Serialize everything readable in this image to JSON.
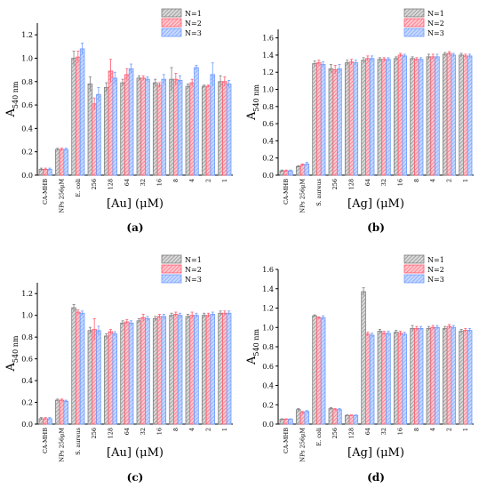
{
  "colors": {
    "N1": "#7f7f7f",
    "N2": "#ff5a6e",
    "N3": "#6e9bff"
  },
  "chart_data": [
    {
      "type": "bar",
      "panel_label": "(a)",
      "xlabel": "[Au] (μM)",
      "ylabel_main": "A",
      "ylabel_sub": "540 nm",
      "ylim": [
        0,
        1.3
      ],
      "yticks": [
        "0.0",
        "0.2",
        "0.4",
        "0.6",
        "0.8",
        "1.0",
        "1.2"
      ],
      "legend_position": "top-right",
      "categories": [
        "CA-MHB",
        "NPs 256μM",
        "E. coli",
        "256",
        "128",
        "64",
        "32",
        "16",
        "8",
        "4",
        "2",
        "1"
      ],
      "series": [
        {
          "name": "N=1",
          "values": [
            0.05,
            0.22,
            1.0,
            0.78,
            0.75,
            0.79,
            0.83,
            0.79,
            0.82,
            0.76,
            0.76,
            0.8
          ],
          "errors": [
            0.01,
            0.01,
            0.06,
            0.06,
            0.04,
            0.03,
            0.02,
            0.03,
            0.1,
            0.02,
            0.01,
            0.05
          ]
        },
        {
          "name": "N=2",
          "values": [
            0.05,
            0.22,
            1.01,
            0.61,
            0.89,
            0.86,
            0.83,
            0.77,
            0.82,
            0.79,
            0.76,
            0.8
          ],
          "errors": [
            0.01,
            0.01,
            0.05,
            0.05,
            0.1,
            0.05,
            0.02,
            0.02,
            0.05,
            0.03,
            0.01,
            0.04
          ]
        },
        {
          "name": "N=3",
          "values": [
            0.05,
            0.22,
            1.08,
            0.69,
            0.83,
            0.91,
            0.82,
            0.82,
            0.81,
            0.92,
            0.86,
            0.78
          ],
          "errors": [
            0.01,
            0.01,
            0.05,
            0.06,
            0.05,
            0.04,
            0.02,
            0.04,
            0.04,
            0.02,
            0.1,
            0.03
          ]
        }
      ]
    },
    {
      "type": "bar",
      "panel_label": "(b)",
      "xlabel": "[Ag] (μM)",
      "ylabel_main": "A",
      "ylabel_sub": "540 nm",
      "ylim": [
        0,
        1.7
      ],
      "yticks": [
        "0.0",
        "0.2",
        "0.4",
        "0.6",
        "0.8",
        "1.0",
        "1.2",
        "1.4",
        "1.6"
      ],
      "legend_position": "top-right",
      "categories": [
        "CA-MHB",
        "NPs 256μM",
        "S. aureus",
        "256",
        "128",
        "64",
        "32",
        "16",
        "8",
        "4",
        "2",
        "1"
      ],
      "series": [
        {
          "name": "N=1",
          "values": [
            0.05,
            0.1,
            1.3,
            1.24,
            1.31,
            1.34,
            1.35,
            1.36,
            1.36,
            1.38,
            1.41,
            1.4
          ],
          "errors": [
            0.01,
            0.01,
            0.03,
            0.05,
            0.03,
            0.03,
            0.02,
            0.02,
            0.02,
            0.03,
            0.02,
            0.02
          ]
        },
        {
          "name": "N=2",
          "values": [
            0.05,
            0.12,
            1.31,
            1.23,
            1.32,
            1.36,
            1.35,
            1.4,
            1.35,
            1.38,
            1.42,
            1.39
          ],
          "errors": [
            0.01,
            0.01,
            0.03,
            0.05,
            0.03,
            0.03,
            0.02,
            0.02,
            0.02,
            0.03,
            0.02,
            0.02
          ]
        },
        {
          "name": "N=3",
          "values": [
            0.05,
            0.13,
            1.29,
            1.24,
            1.31,
            1.36,
            1.35,
            1.39,
            1.35,
            1.38,
            1.4,
            1.39
          ],
          "errors": [
            0.01,
            0.02,
            0.03,
            0.05,
            0.03,
            0.03,
            0.02,
            0.02,
            0.02,
            0.03,
            0.02,
            0.02
          ]
        }
      ]
    },
    {
      "type": "bar",
      "panel_label": "(c)",
      "xlabel": "[Au] (μM)",
      "ylabel_main": "A",
      "ylabel_sub": "540 nm",
      "ylim": [
        0,
        1.3
      ],
      "yticks": [
        "0.0",
        "0.2",
        "0.4",
        "0.6",
        "0.8",
        "1.0",
        "1.2"
      ],
      "legend_position": "top-right",
      "categories": [
        "CA-MHB",
        "NPs 256μM",
        "S. aureus",
        "256",
        "128",
        "64",
        "32",
        "16",
        "8",
        "4",
        "2",
        "1"
      ],
      "series": [
        {
          "name": "N=1",
          "values": [
            0.05,
            0.22,
            1.07,
            0.86,
            0.81,
            0.93,
            0.95,
            0.97,
            1.0,
            0.99,
            1.0,
            1.02
          ],
          "errors": [
            0.01,
            0.01,
            0.03,
            0.03,
            0.02,
            0.02,
            0.02,
            0.02,
            0.02,
            0.02,
            0.02,
            0.02
          ]
        },
        {
          "name": "N=2",
          "values": [
            0.05,
            0.22,
            1.03,
            0.87,
            0.85,
            0.94,
            0.98,
            0.99,
            1.01,
            1.0,
            1.0,
            1.02
          ],
          "errors": [
            0.01,
            0.01,
            0.02,
            0.1,
            0.02,
            0.02,
            0.03,
            0.02,
            0.02,
            0.03,
            0.02,
            0.02
          ]
        },
        {
          "name": "N=3",
          "values": [
            0.05,
            0.21,
            1.02,
            0.86,
            0.83,
            0.93,
            0.97,
            0.99,
            1.0,
            1.0,
            1.01,
            1.02
          ],
          "errors": [
            0.01,
            0.01,
            0.02,
            0.04,
            0.02,
            0.02,
            0.02,
            0.02,
            0.02,
            0.02,
            0.02,
            0.02
          ]
        }
      ]
    },
    {
      "type": "bar",
      "panel_label": "(d)",
      "xlabel": "[Ag] (μM)",
      "ylabel_main": "A",
      "ylabel_sub": "540 nm",
      "ylim": [
        0,
        1.6
      ],
      "yticks": [
        "0.0",
        "0.2",
        "0.4",
        "0.6",
        "0.8",
        "1.0",
        "1.2",
        "1.4",
        "1.6"
      ],
      "legend_position": "top-right",
      "categories": [
        "CA-MHB",
        "NPs 256μM",
        "E. coli",
        "256",
        "128",
        "64",
        "32",
        "16",
        "8",
        "4",
        "2",
        "1"
      ],
      "series": [
        {
          "name": "N=1",
          "values": [
            0.05,
            0.15,
            1.12,
            0.16,
            0.09,
            1.37,
            0.96,
            0.95,
            0.99,
            0.99,
            0.99,
            0.96
          ],
          "errors": [
            0.005,
            0.01,
            0.01,
            0.01,
            0.005,
            0.04,
            0.02,
            0.02,
            0.03,
            0.02,
            0.02,
            0.02
          ]
        },
        {
          "name": "N=2",
          "values": [
            0.05,
            0.12,
            1.1,
            0.15,
            0.09,
            0.93,
            0.94,
            0.94,
            0.99,
            1.0,
            1.01,
            0.97
          ],
          "errors": [
            0.005,
            0.01,
            0.01,
            0.01,
            0.005,
            0.02,
            0.02,
            0.02,
            0.02,
            0.02,
            0.02,
            0.02
          ]
        },
        {
          "name": "N=3",
          "values": [
            0.05,
            0.13,
            1.1,
            0.15,
            0.09,
            0.92,
            0.94,
            0.93,
            0.99,
            1.0,
            1.0,
            0.97
          ],
          "errors": [
            0.005,
            0.01,
            0.02,
            0.01,
            0.005,
            0.02,
            0.02,
            0.02,
            0.02,
            0.02,
            0.02,
            0.02
          ]
        }
      ]
    }
  ]
}
